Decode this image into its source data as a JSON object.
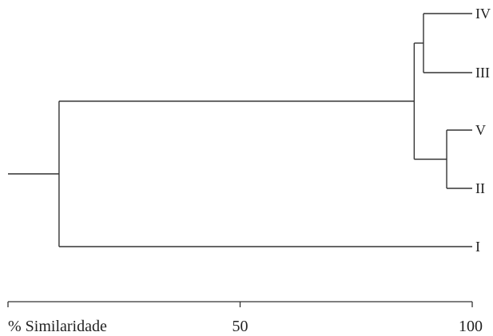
{
  "dendrogram": {
    "leaves": [
      "IV",
      "III",
      "V",
      "II",
      "I"
    ],
    "merges": [
      {
        "members": [
          "IV",
          "III"
        ],
        "similarity": 89.5
      },
      {
        "members": [
          "V",
          "II"
        ],
        "similarity": 94.5
      },
      {
        "members": [
          "IV",
          "III",
          "V",
          "II"
        ],
        "similarity": 87.5
      },
      {
        "members": [
          "IV",
          "III",
          "V",
          "II",
          "I"
        ],
        "similarity": 11
      }
    ],
    "line_color": "#333333"
  },
  "axis": {
    "label": "% Similaridade",
    "ticks": [
      {
        "value": 50,
        "label": "50"
      },
      {
        "value": 100,
        "label": "100"
      }
    ],
    "range": [
      0,
      100
    ]
  }
}
